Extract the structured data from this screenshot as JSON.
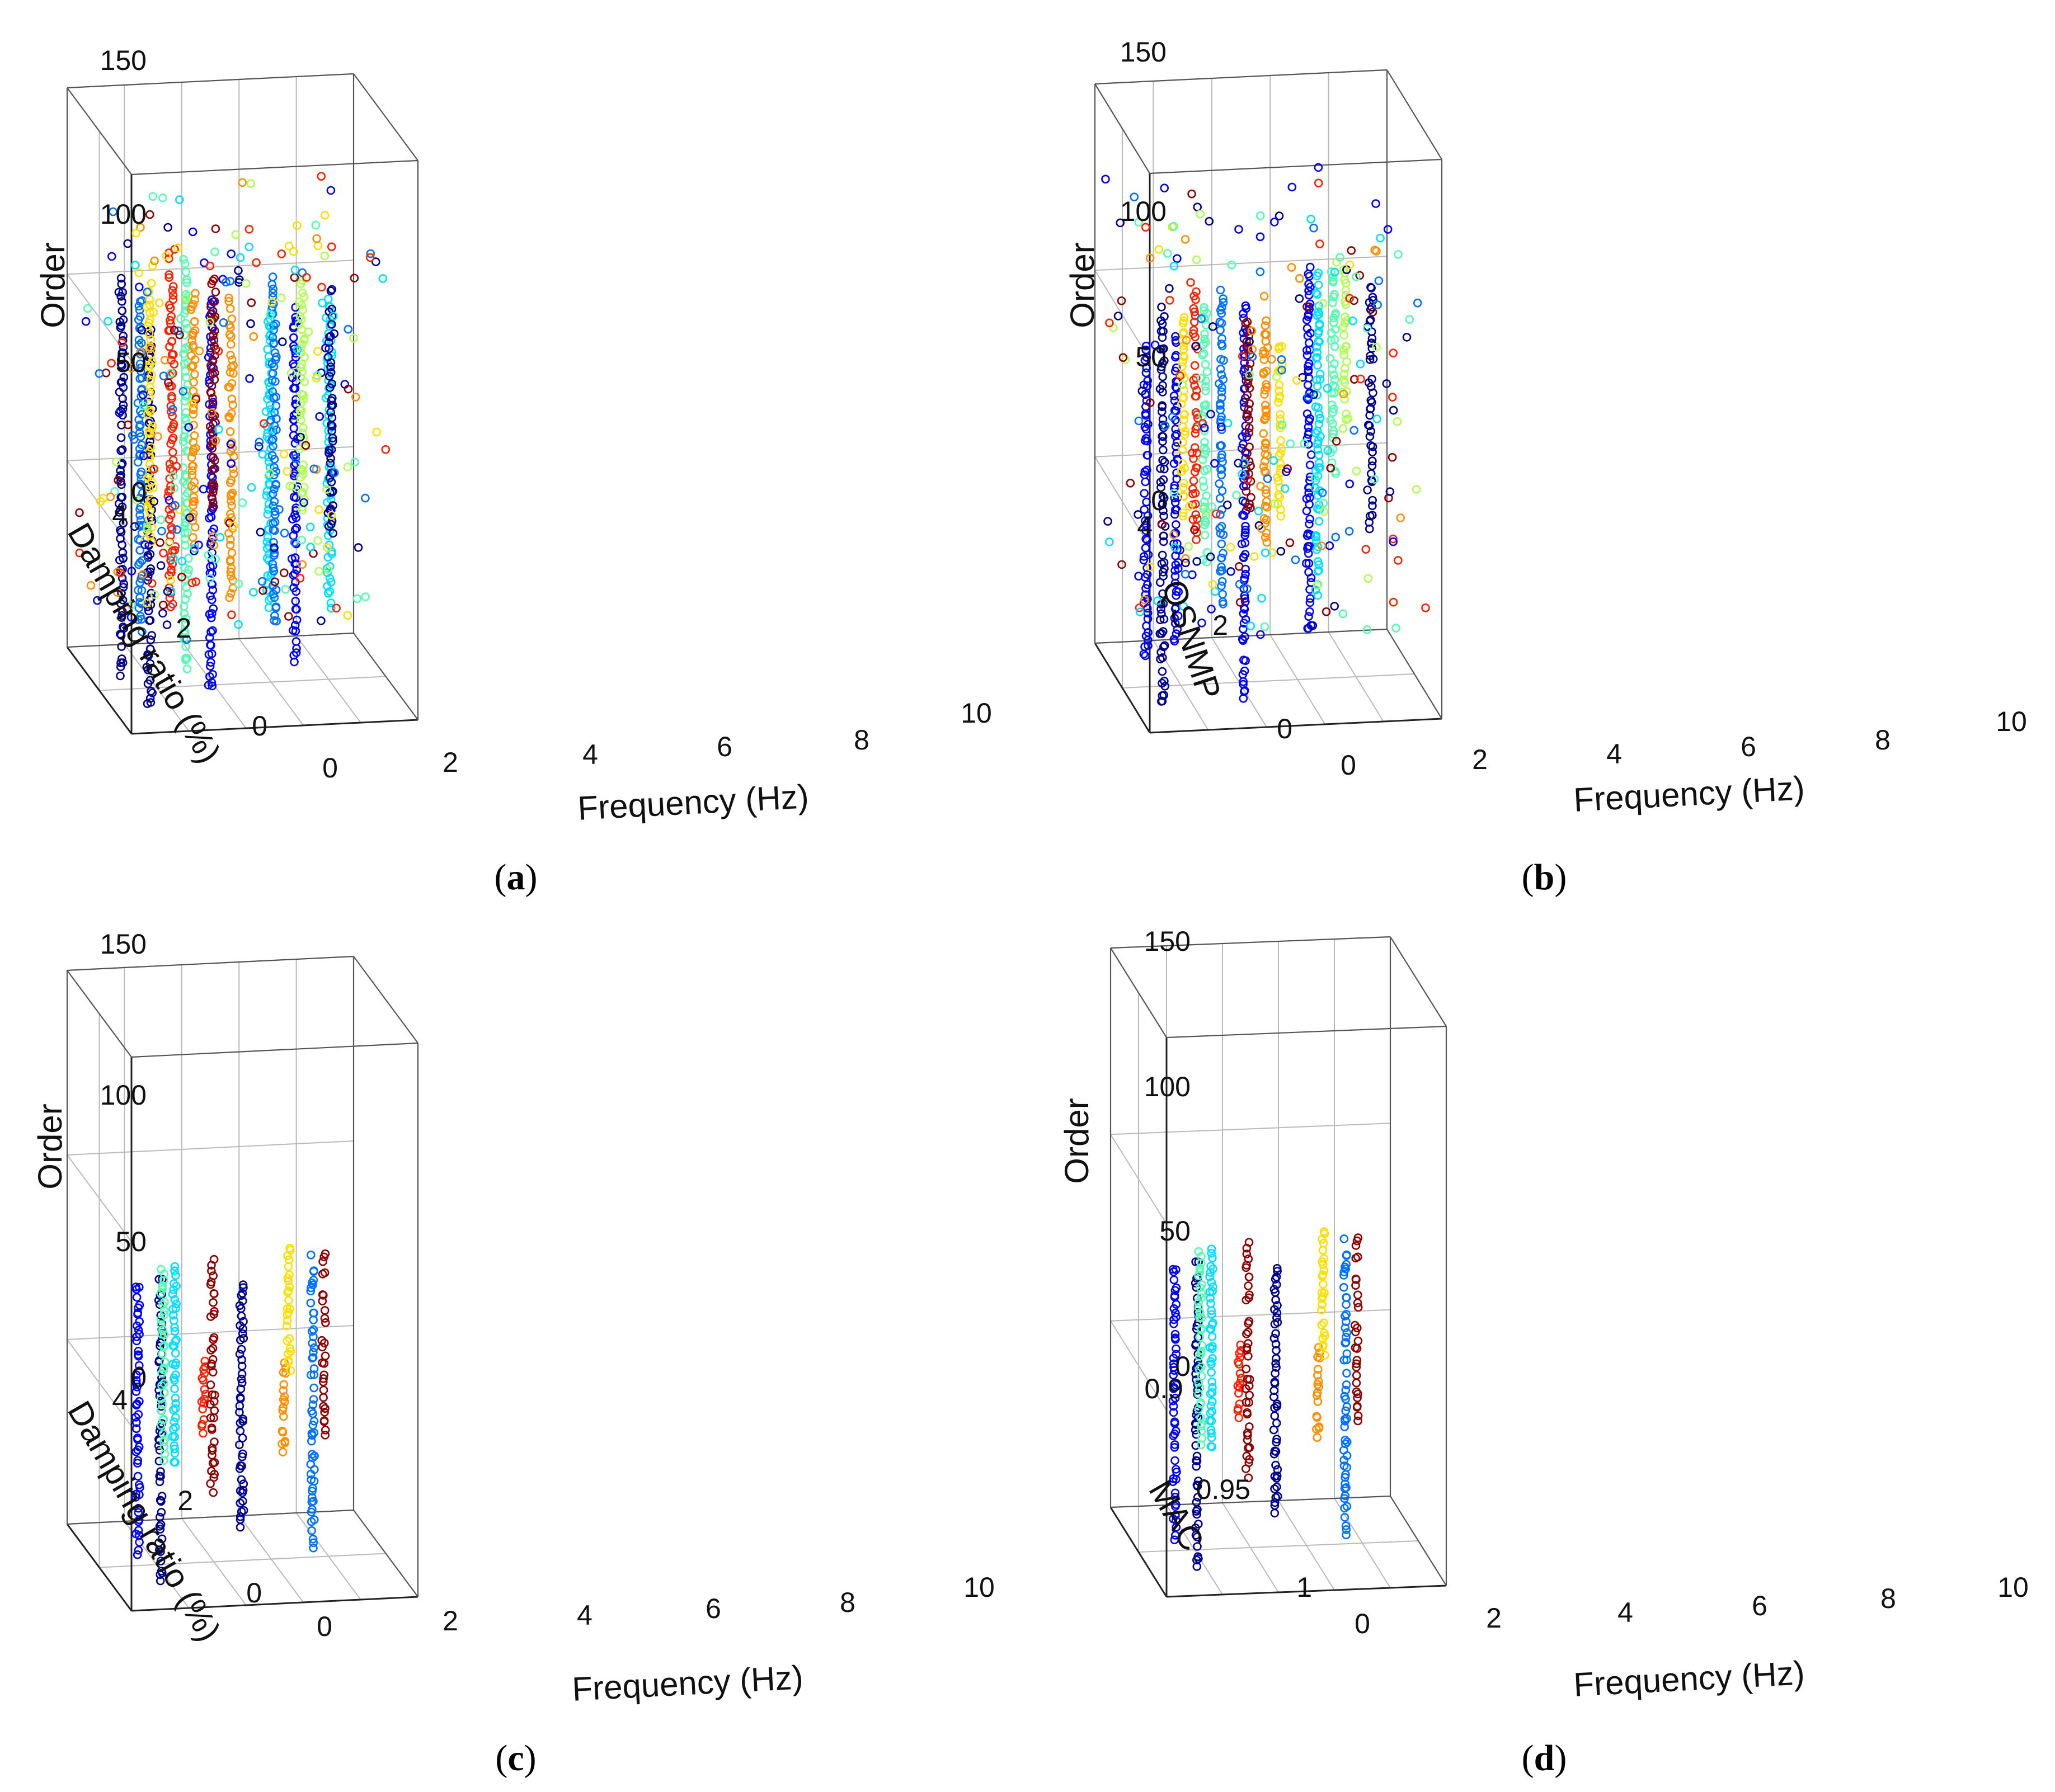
{
  "chart_data": [
    {
      "id": "a",
      "type": "scatter",
      "caption": "a",
      "xlabel": "Frequency (Hz)",
      "ylabel": "Damping ratio (%)",
      "zlabel": "Order",
      "xlim": [
        0,
        10
      ],
      "ylim": [
        0,
        4
      ],
      "zlim": [
        0,
        150
      ],
      "xticks": [
        "0",
        "2",
        "4",
        "6",
        "8",
        "10"
      ],
      "yticks": [
        "0",
        "2",
        "4"
      ],
      "zticks": [
        "0",
        "50",
        "100",
        "150"
      ],
      "grid": true,
      "filter": "none",
      "colors": [
        "#00008f",
        "#0000ff",
        "#0070ff",
        "#00dfff",
        "#50ffaf",
        "#afff50",
        "#ffdf00",
        "#ff8f00",
        "#ff2000",
        "#8f0000"
      ],
      "note": "Unfiltered stabilization diagram: circles spread at many frequencies and damping ratios, columns near 0.5, 1.4, 2.2, 3.0, 4.2, 4.6, 6.2, 7.6, 8.6 Hz"
    },
    {
      "id": "b",
      "type": "scatter",
      "caption": "b",
      "xlabel": "Frequency (Hz)",
      "ylabel": "QSNMP",
      "zlabel": "Order",
      "xlim": [
        0,
        10
      ],
      "ylim": [
        0,
        4
      ],
      "zlim": [
        0,
        150
      ],
      "xticks": [
        "0",
        "2",
        "4",
        "6",
        "8",
        "10"
      ],
      "yticks": [
        "0",
        "2",
        "4"
      ],
      "zticks": [
        "0",
        "50",
        "100",
        "150"
      ],
      "grid": true,
      "filter": "partial",
      "note": "QSNMP-filtered diagram with scattered spurious circles at high orders"
    },
    {
      "id": "c",
      "type": "scatter",
      "caption": "c",
      "xlabel": "Frequency (Hz)",
      "ylabel": "Damping ratio (%)",
      "zlabel": "Order",
      "xlim": [
        0,
        10
      ],
      "ylim": [
        0,
        4
      ],
      "zlim": [
        0,
        150
      ],
      "xticks": [
        "0",
        "2",
        "4",
        "6",
        "8",
        "10"
      ],
      "yticks": [
        "0",
        "2",
        "4"
      ],
      "zticks": [
        "0",
        "50",
        "100",
        "150"
      ],
      "grid": true,
      "filter": "clean",
      "modes_hz": [
        1.2,
        1.8,
        2.1,
        2.4,
        3.4,
        3.75,
        4.4,
        6.15,
        6.5,
        7.05,
        7.6
      ],
      "note": "Cleaned stabilization diagram: stable columns only"
    },
    {
      "id": "d",
      "type": "scatter",
      "caption": "d",
      "xlabel": "Frequency (Hz)",
      "ylabel": "MAC",
      "zlabel": "Order",
      "xlim": [
        0,
        10
      ],
      "ylim": [
        0.9,
        1
      ],
      "zlim": [
        0,
        150
      ],
      "xticks": [
        "0",
        "2",
        "4",
        "6",
        "8",
        "10"
      ],
      "yticks": [
        "0.9",
        "0.95",
        "1"
      ],
      "zticks": [
        "0",
        "50",
        "100",
        "150"
      ],
      "grid": true,
      "filter": "clean",
      "modes_hz": [
        1.2,
        1.8,
        2.1,
        3.4,
        3.75,
        4.4,
        6.15,
        6.5,
        7.05,
        7.6
      ],
      "note": "Cleaned diagram plotted against MAC"
    }
  ]
}
